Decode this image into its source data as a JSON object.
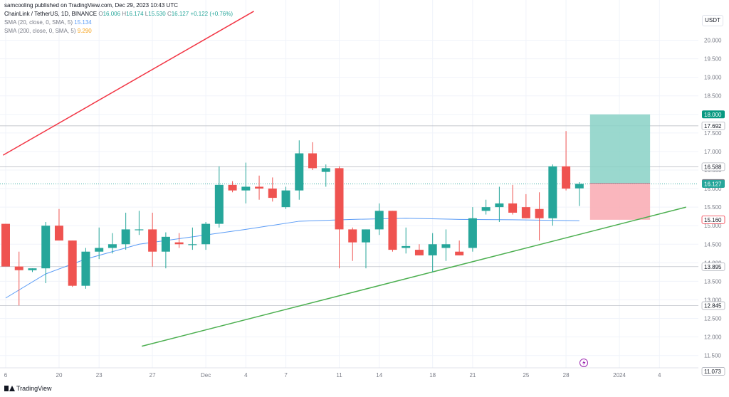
{
  "header": {
    "published": "samcooling published on TradingView.com, Dec 29, 2023 10:43 UTC",
    "symbol": "ChainLink / TetherUS, 1D, BINANCE",
    "o_label": "O",
    "o_val": "16.006",
    "h_label": "H",
    "h_val": "16.174",
    "l_label": "L",
    "l_val": "15.530",
    "c_label": "C",
    "c_val": "16.127",
    "change": "+0.122 (+0.76%)",
    "sma20_label": "SMA (20, close, 0, SMA, 5)",
    "sma20_val": "15.134",
    "sma200_label": "SMA (200, close, 0, SMA, 5)",
    "sma200_val": "9.290"
  },
  "currency_button": "USDT",
  "brand": "TradingView",
  "colors": {
    "up": "#26a69a",
    "down": "#ef5350",
    "sma20": "#5b9cf6",
    "trend_red": "#f23645",
    "trend_green": "#4caf50",
    "target": "#88d1c6",
    "stop": "#f9a9b1"
  },
  "chart_data": {
    "type": "candlestick",
    "y_axis": {
      "range": [
        11.073,
        20.32
      ],
      "ticks": [
        "11.500",
        "12.000",
        "12.500",
        "13.000",
        "13.500",
        "14.000",
        "14.500",
        "15.000",
        "15.500",
        "16.000",
        "16.500",
        "17.000",
        "17.500",
        "18.000",
        "18.500",
        "19.000",
        "19.500",
        "20.000"
      ]
    },
    "x_axis": {
      "ticks": [
        {
          "i": 0,
          "label": "6"
        },
        {
          "i": 4,
          "label": "20"
        },
        {
          "i": 7,
          "label": "23"
        },
        {
          "i": 11,
          "label": "27"
        },
        {
          "i": 15,
          "label": "Dec"
        },
        {
          "i": 18,
          "label": "4"
        },
        {
          "i": 21,
          "label": "7"
        },
        {
          "i": 25,
          "label": "11"
        },
        {
          "i": 28,
          "label": "14"
        },
        {
          "i": 32,
          "label": "18"
        },
        {
          "i": 35,
          "label": "21"
        },
        {
          "i": 39,
          "label": "25"
        },
        {
          "i": 42,
          "label": "28"
        },
        {
          "i": 46,
          "label": "2024"
        },
        {
          "i": 49,
          "label": "4"
        }
      ]
    },
    "candles": [
      {
        "o": 15.05,
        "h": 15.05,
        "l": 13.9,
        "c": 13.9
      },
      {
        "o": 13.9,
        "h": 14.3,
        "l": 12.85,
        "c": 13.8
      },
      {
        "o": 13.8,
        "h": 13.85,
        "l": 13.75,
        "c": 13.85
      },
      {
        "o": 13.85,
        "h": 15.1,
        "l": 13.45,
        "c": 15.0
      },
      {
        "o": 15.0,
        "h": 15.45,
        "l": 14.6,
        "c": 14.6
      },
      {
        "o": 14.6,
        "h": 14.6,
        "l": 13.35,
        "c": 13.38
      },
      {
        "o": 13.38,
        "h": 14.4,
        "l": 13.3,
        "c": 14.3
      },
      {
        "o": 14.3,
        "h": 14.95,
        "l": 14.1,
        "c": 14.4
      },
      {
        "o": 14.4,
        "h": 14.8,
        "l": 14.25,
        "c": 14.5
      },
      {
        "o": 14.5,
        "h": 15.35,
        "l": 14.35,
        "c": 14.9
      },
      {
        "o": 14.9,
        "h": 15.4,
        "l": 14.75,
        "c": 14.9
      },
      {
        "o": 14.9,
        "h": 15.35,
        "l": 13.9,
        "c": 14.3
      },
      {
        "o": 14.3,
        "h": 14.82,
        "l": 13.85,
        "c": 14.7
      },
      {
        "o": 14.55,
        "h": 14.8,
        "l": 14.4,
        "c": 14.5
      },
      {
        "o": 14.5,
        "h": 14.95,
        "l": 14.35,
        "c": 14.5
      },
      {
        "o": 14.5,
        "h": 15.1,
        "l": 14.35,
        "c": 15.05
      },
      {
        "o": 15.05,
        "h": 16.6,
        "l": 14.95,
        "c": 16.1
      },
      {
        "o": 16.1,
        "h": 16.2,
        "l": 15.9,
        "c": 15.95
      },
      {
        "o": 15.95,
        "h": 16.7,
        "l": 15.6,
        "c": 16.05
      },
      {
        "o": 16.05,
        "h": 16.35,
        "l": 15.7,
        "c": 16.0
      },
      {
        "o": 16.0,
        "h": 16.3,
        "l": 15.65,
        "c": 15.75
      },
      {
        "o": 15.5,
        "h": 16.05,
        "l": 15.45,
        "c": 15.95
      },
      {
        "o": 15.95,
        "h": 17.3,
        "l": 15.7,
        "c": 16.95
      },
      {
        "o": 16.95,
        "h": 17.25,
        "l": 16.5,
        "c": 16.55
      },
      {
        "o": 16.45,
        "h": 16.65,
        "l": 16.05,
        "c": 16.55
      },
      {
        "o": 16.55,
        "h": 16.6,
        "l": 13.85,
        "c": 14.9
      },
      {
        "o": 14.9,
        "h": 14.95,
        "l": 14.05,
        "c": 14.55
      },
      {
        "o": 14.55,
        "h": 14.9,
        "l": 13.85,
        "c": 14.9
      },
      {
        "o": 14.9,
        "h": 15.6,
        "l": 14.75,
        "c": 15.4
      },
      {
        "o": 15.4,
        "h": 15.4,
        "l": 14.3,
        "c": 14.35
      },
      {
        "o": 14.4,
        "h": 14.95,
        "l": 14.25,
        "c": 14.45
      },
      {
        "o": 14.35,
        "h": 14.5,
        "l": 14.2,
        "c": 14.2
      },
      {
        "o": 14.2,
        "h": 14.8,
        "l": 13.75,
        "c": 14.5
      },
      {
        "o": 14.4,
        "h": 14.9,
        "l": 14.05,
        "c": 14.5
      },
      {
        "o": 14.3,
        "h": 14.6,
        "l": 14.2,
        "c": 14.2
      },
      {
        "o": 14.4,
        "h": 15.5,
        "l": 14.3,
        "c": 15.2
      },
      {
        "o": 15.4,
        "h": 15.7,
        "l": 15.3,
        "c": 15.5
      },
      {
        "o": 15.5,
        "h": 16.05,
        "l": 15.1,
        "c": 15.6
      },
      {
        "o": 15.6,
        "h": 16.1,
        "l": 15.3,
        "c": 15.35
      },
      {
        "o": 15.5,
        "h": 15.85,
        "l": 15.2,
        "c": 15.2
      },
      {
        "o": 15.45,
        "h": 15.9,
        "l": 14.6,
        "c": 15.2
      },
      {
        "o": 15.2,
        "h": 16.65,
        "l": 15.0,
        "c": 16.6
      },
      {
        "o": 16.6,
        "h": 17.55,
        "l": 15.95,
        "c": 16.0
      },
      {
        "o": 16.006,
        "h": 16.174,
        "l": 15.53,
        "c": 16.127
      }
    ],
    "sma20": [
      {
        "i": 0,
        "v": 13.05
      },
      {
        "i": 3,
        "v": 13.7
      },
      {
        "i": 6,
        "v": 14.1
      },
      {
        "i": 10,
        "v": 14.5
      },
      {
        "i": 14,
        "v": 14.7
      },
      {
        "i": 18,
        "v": 14.9
      },
      {
        "i": 22,
        "v": 15.12
      },
      {
        "i": 26,
        "v": 15.17
      },
      {
        "i": 30,
        "v": 15.2
      },
      {
        "i": 34,
        "v": 15.17
      },
      {
        "i": 38,
        "v": 15.16
      },
      {
        "i": 43,
        "v": 15.134
      }
    ],
    "lines": [
      {
        "name": "resistance",
        "color": "#f23645",
        "from": {
          "i": -0.2,
          "v": 16.9
        },
        "to": {
          "i": 18.6,
          "v": 20.78
        }
      },
      {
        "name": "support",
        "color": "#4caf50",
        "from": {
          "i": 10.2,
          "v": 11.75
        },
        "to": {
          "i": 51.0,
          "v": 15.5
        }
      }
    ],
    "position": {
      "entry": 16.147,
      "target": 18.0,
      "stop": 15.16,
      "from_i": 43.8,
      "to_i": 48.3
    },
    "price_labels": [
      {
        "value": "18.000",
        "y": 18.0,
        "style": "target"
      },
      {
        "value": "17.692",
        "y": 17.692,
        "style": "plain"
      },
      {
        "value": "16.588",
        "y": 16.588,
        "style": "plain"
      },
      {
        "value": "16.147",
        "y": 16.147,
        "style": "gray"
      },
      {
        "value": "16.127",
        "y": 16.127,
        "style": "up"
      },
      {
        "value": "15.160",
        "y": 15.16,
        "style": "stop"
      },
      {
        "value": "13.895",
        "y": 13.895,
        "style": "plain"
      },
      {
        "value": "12.845",
        "y": 12.845,
        "style": "plain"
      },
      {
        "value": "11.073",
        "y": 11.073,
        "style": "plain"
      }
    ],
    "hlines": [
      17.692,
      16.588,
      13.895,
      12.845
    ]
  }
}
